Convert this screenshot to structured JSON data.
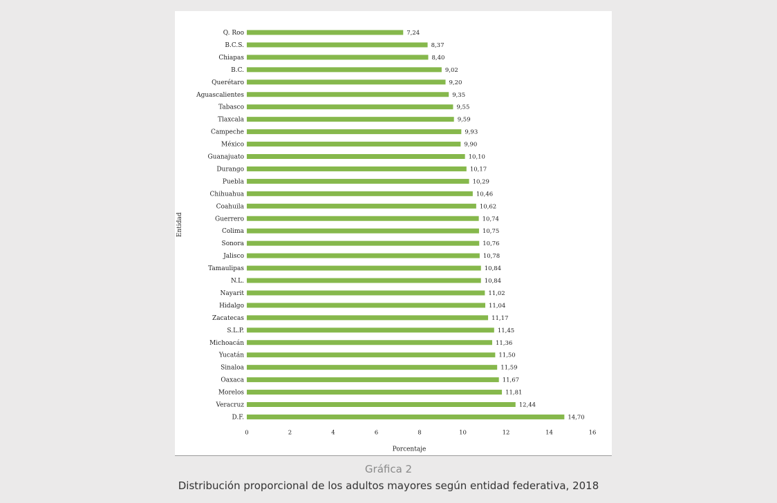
{
  "caption": {
    "number": "Gráfica 2",
    "title": "Distribución proporcional de los adultos mayores según entidad federativa, 2018"
  },
  "chart_data": {
    "type": "bar",
    "orientation": "horizontal",
    "bar_color": "#86b84c",
    "xlabel": "Porcentaje",
    "ylabel": "Entidad",
    "xlim": [
      0,
      16
    ],
    "xticks": [
      0,
      2,
      4,
      6,
      8,
      10,
      12,
      14,
      16
    ],
    "grid": false,
    "categories": [
      "Q. Roo",
      "B.C.S.",
      "Chiapas",
      "B.C.",
      "Querétaro",
      "Aguascalientes",
      "Tabasco",
      "Tlaxcala",
      "Campeche",
      "México",
      "Guanajuato",
      "Durango",
      "Puebla",
      "Chihuahua",
      "Coahuila",
      "Guerrero",
      "Colima",
      "Sonora",
      "Jalisco",
      "Tamaulipas",
      "N.L.",
      "Nayarit",
      "Hidalgo",
      "Zacatecas",
      "S.L.P.",
      "Michoacán",
      "Yucatán",
      "Sinaloa",
      "Oaxaca",
      "Morelos",
      "Veracruz",
      "D.F."
    ],
    "values": [
      7.24,
      8.37,
      8.4,
      9.02,
      9.2,
      9.35,
      9.55,
      9.59,
      9.93,
      9.9,
      10.1,
      10.17,
      10.29,
      10.46,
      10.62,
      10.74,
      10.75,
      10.76,
      10.78,
      10.84,
      10.84,
      11.02,
      11.04,
      11.17,
      11.45,
      11.36,
      11.5,
      11.59,
      11.67,
      11.81,
      12.44,
      14.7
    ],
    "value_labels": [
      "7,24",
      "8,37",
      "8,40",
      "9,02",
      "9,20",
      "9,35",
      "9,55",
      "9,59",
      "9,93",
      "9,90",
      "10,10",
      "10,17",
      "10,29",
      "10,46",
      "10,62",
      "10,74",
      "10,75",
      "10,76",
      "10,78",
      "10,84",
      "10,84",
      "11,02",
      "11,04",
      "11,17",
      "11,45",
      "11,36",
      "11,50",
      "11,59",
      "11,67",
      "11,81",
      "12,44",
      "14,70"
    ]
  }
}
